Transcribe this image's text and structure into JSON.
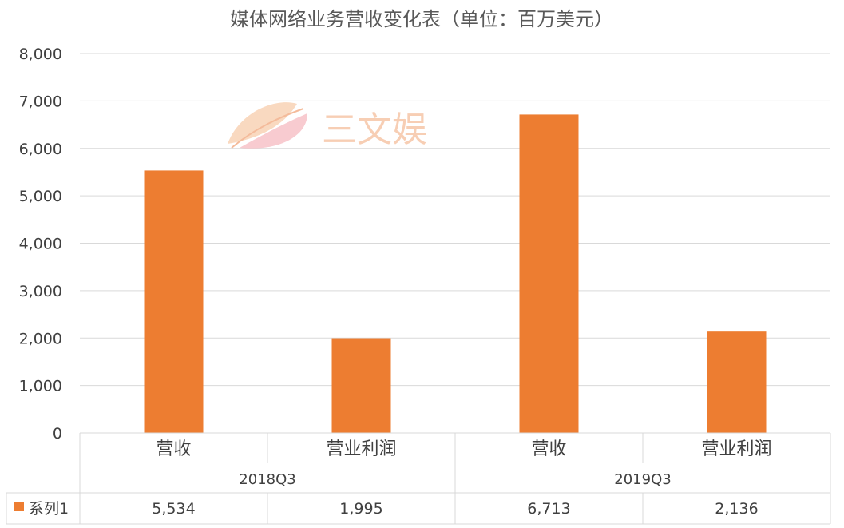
{
  "chart_data": {
    "type": "bar",
    "title": "媒体网络业务营收变化表（单位：百万美元）",
    "groups": [
      "2018Q3",
      "2019Q3"
    ],
    "categories": [
      "营收",
      "营业利润",
      "营收",
      "营业利润"
    ],
    "series": [
      {
        "name": "系列1",
        "values": [
          5534,
          1995,
          6713,
          2136
        ],
        "color": "#ed7d31"
      }
    ],
    "value_labels": [
      "5,534",
      "1,995",
      "6,713",
      "2,136"
    ],
    "ylim": [
      0,
      8000
    ],
    "yticks": [
      0,
      1000,
      2000,
      3000,
      4000,
      5000,
      6000,
      7000,
      8000
    ],
    "ytick_labels": [
      "0",
      "1,000",
      "2,000",
      "3,000",
      "4,000",
      "5,000",
      "6,000",
      "7,000",
      "8,000"
    ],
    "grid": true,
    "legend": "data-table"
  },
  "watermark": {
    "text": "三文娱",
    "icon": "fan-leaf-logo-icon"
  }
}
